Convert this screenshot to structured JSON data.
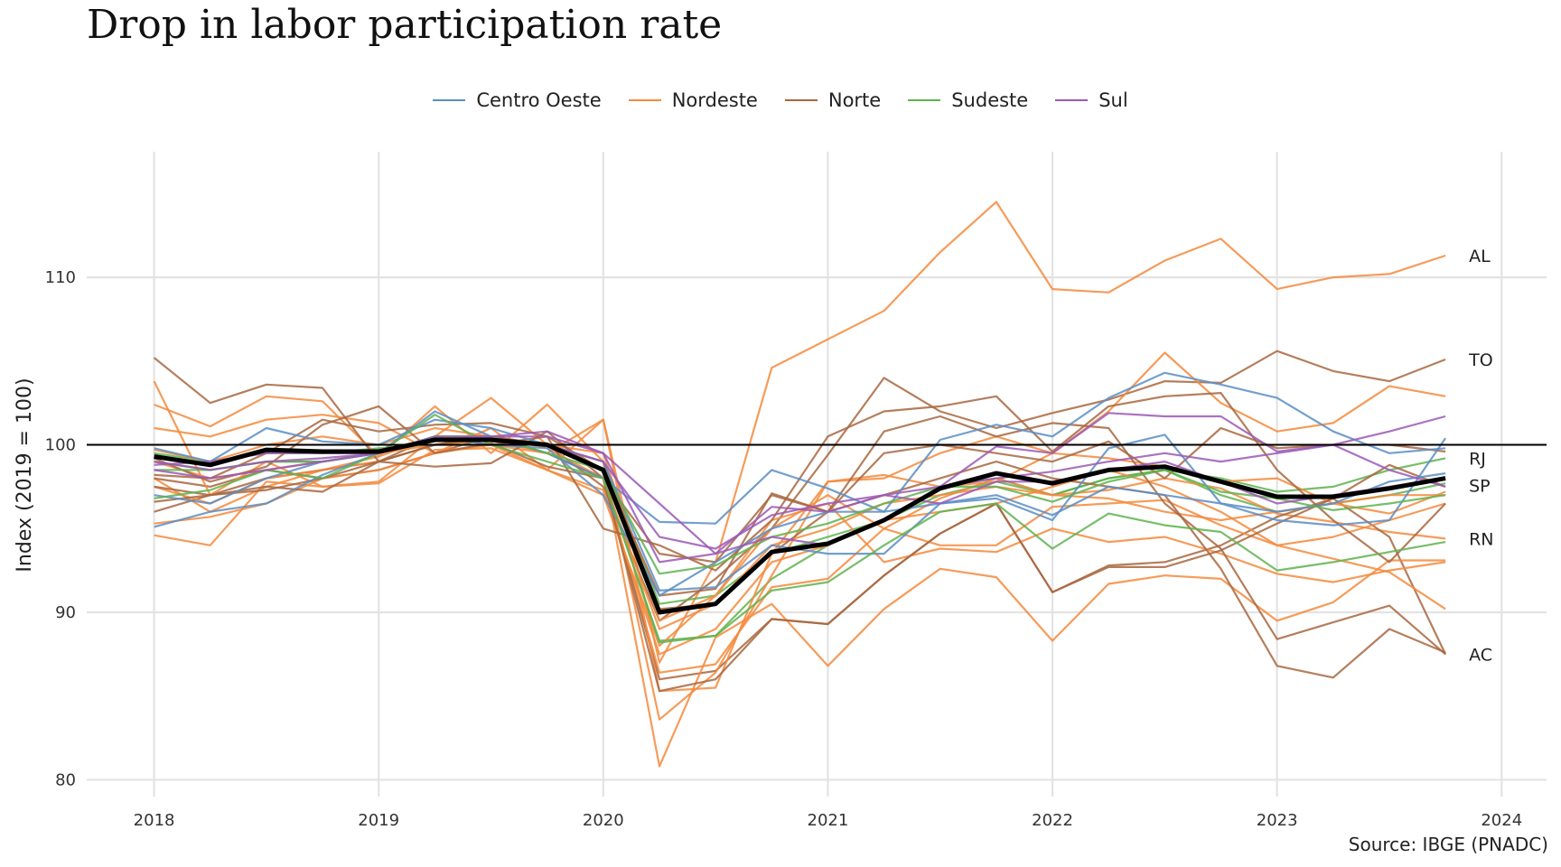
{
  "chart_data": {
    "type": "line",
    "title": "Drop in labor participation rate",
    "ylabel": "Index (2019 = 100)",
    "xlabel": "",
    "caption": "Source: IBGE (PNADC)",
    "x_ticks": [
      2018,
      2019,
      2020,
      2021,
      2022,
      2023,
      2024
    ],
    "y_ticks": [
      80,
      90,
      100,
      110
    ],
    "xlim": [
      2017.7,
      2024.2
    ],
    "ylim": [
      79,
      117.5
    ],
    "grid": true,
    "legend_position": "top-center",
    "reference_line": 100,
    "colors": {
      "Centro Oeste": "#5b8ec4",
      "Nordeste": "#f58a3c",
      "Norte": "#a8673f",
      "Sudeste": "#5fb34f",
      "Sul": "#9b59b6",
      "national": "#000000"
    },
    "legend": [
      {
        "label": "Centro Oeste",
        "color": "#5b8ec4"
      },
      {
        "label": "Nordeste",
        "color": "#f58a3c"
      },
      {
        "label": "Norte",
        "color": "#a8673f"
      },
      {
        "label": "Sudeste",
        "color": "#5fb34f"
      },
      {
        "label": "Sul",
        "color": "#9b59b6"
      }
    ],
    "x": [
      2018.0,
      2018.25,
      2018.5,
      2018.75,
      2019.0,
      2019.25,
      2019.5,
      2019.75,
      2020.0,
      2020.25,
      2020.5,
      2020.75,
      2021.0,
      2021.25,
      2021.5,
      2021.75,
      2022.0,
      2022.25,
      2022.5,
      2022.75,
      2023.0,
      2023.25,
      2023.5,
      2023.75
    ],
    "national": [
      99.3,
      98.8,
      99.7,
      99.6,
      99.6,
      100.3,
      100.3,
      100.0,
      98.5,
      90.0,
      90.5,
      93.6,
      94.1,
      95.5,
      97.4,
      98.3,
      97.7,
      98.5,
      98.7,
      97.8,
      96.9,
      96.9,
      97.4,
      98.0
    ],
    "series": [
      {
        "name": "AL",
        "group": "Nordeste",
        "label": "AL",
        "values": [
          98.0,
          96.0,
          97.5,
          98.5,
          99.3,
          100.5,
          100.0,
          99.5,
          101.5,
          87.0,
          93.0,
          104.6,
          106.3,
          108.0,
          111.5,
          114.5,
          109.3,
          109.1,
          111.0,
          112.3,
          109.3,
          110.0,
          110.2,
          111.3
        ]
      },
      {
        "name": "TO",
        "group": "Norte",
        "label": "TO",
        "values": [
          96.0,
          97.0,
          98.0,
          98.5,
          99.0,
          100.5,
          100.5,
          100.0,
          97.5,
          89.5,
          92.0,
          95.0,
          99.4,
          104.0,
          102.0,
          101.0,
          101.9,
          102.7,
          103.8,
          103.7,
          105.6,
          104.4,
          103.8,
          105.1
        ]
      },
      {
        "name": "RJ",
        "group": "Sudeste",
        "label": "RJ",
        "values": [
          99.0,
          98.5,
          99.0,
          99.0,
          99.5,
          100.5,
          100.5,
          99.5,
          98.0,
          88.3,
          88.6,
          92.0,
          94.0,
          95.5,
          97.5,
          98.0,
          97.0,
          98.0,
          98.5,
          98.0,
          97.2,
          97.5,
          98.5,
          99.2
        ]
      },
      {
        "name": "SP",
        "group": "Sudeste",
        "label": "SP",
        "values": [
          99.5,
          99.0,
          99.5,
          99.5,
          99.8,
          100.0,
          100.3,
          100.0,
          99.0,
          90.5,
          91.0,
          93.5,
          94.5,
          95.5,
          97.0,
          97.8,
          97.0,
          98.0,
          98.5,
          97.0,
          96.0,
          96.5,
          97.0,
          97.7
        ]
      },
      {
        "name": "RN",
        "group": "Nordeste",
        "label": "RN",
        "values": [
          97.5,
          96.5,
          98.0,
          98.5,
          99.0,
          100.0,
          100.3,
          99.5,
          98.0,
          86.4,
          86.9,
          91.5,
          92.0,
          95.0,
          96.8,
          98.0,
          97.0,
          97.3,
          98.0,
          97.4,
          95.9,
          95.4,
          94.8,
          94.4
        ]
      },
      {
        "name": "AC",
        "group": "Norte",
        "label": "AC",
        "values": [
          98.0,
          97.5,
          98.5,
          98.0,
          98.5,
          99.5,
          100.5,
          99.5,
          98.0,
          86.0,
          86.5,
          89.6,
          89.3,
          92.2,
          94.7,
          96.5,
          91.2,
          92.8,
          93.0,
          94.0,
          95.7,
          96.8,
          94.5,
          87.5
        ]
      },
      {
        "name": "Nordeste 1",
        "group": "Nordeste",
        "values": [
          103.8,
          97.0,
          99.0,
          97.5,
          97.8,
          100.5,
          102.8,
          100.0,
          98.5,
          80.8,
          88.5,
          90.5,
          86.8,
          90.2,
          92.6,
          92.1,
          88.3,
          91.7,
          92.2,
          92.0,
          89.5,
          90.6,
          93.1,
          93.1
        ]
      },
      {
        "name": "Nordeste 2",
        "group": "Nordeste",
        "values": [
          102.4,
          101.1,
          102.9,
          102.6,
          99.3,
          102.3,
          99.5,
          102.4,
          99.0,
          83.6,
          86.4,
          92.2,
          97.8,
          98.2,
          97.5,
          97.8,
          99.5,
          102.0,
          105.5,
          102.5,
          100.8,
          101.3,
          103.5,
          102.9
        ]
      },
      {
        "name": "Nordeste 3",
        "group": "Nordeste",
        "values": [
          94.6,
          94.0,
          97.8,
          97.5,
          97.7,
          99.7,
          99.8,
          98.5,
          101.5,
          85.3,
          85.5,
          93.5,
          97.8,
          98.0,
          99.5,
          100.5,
          99.5,
          99.2,
          98.7,
          97.8,
          98.0,
          96.5,
          95.9,
          97.2
        ]
      },
      {
        "name": "Nordeste 4",
        "group": "Nordeste",
        "values": [
          101.0,
          100.5,
          101.5,
          101.8,
          101.3,
          99.5,
          101.0,
          98.5,
          97.3,
          87.5,
          89.0,
          93.0,
          94.0,
          95.5,
          96.0,
          96.5,
          97.5,
          98.5,
          97.5,
          96.0,
          94.0,
          94.5,
          95.5,
          96.5
        ]
      },
      {
        "name": "Nordeste 5",
        "group": "Nordeste",
        "values": [
          95.3,
          95.7,
          96.5,
          98.0,
          98.5,
          99.5,
          100.0,
          98.5,
          97.0,
          88.0,
          91.0,
          95.0,
          97.0,
          95.0,
          94.0,
          94.0,
          96.3,
          96.5,
          96.7,
          95.2,
          94.0,
          93.2,
          92.4,
          90.2
        ]
      },
      {
        "name": "Nordeste 6",
        "group": "Nordeste",
        "values": [
          99.7,
          99.0,
          100.0,
          100.5,
          100.0,
          101.0,
          100.5,
          99.8,
          98.0,
          89.0,
          90.5,
          94.0,
          95.0,
          96.5,
          97.0,
          97.5,
          97.0,
          96.8,
          96.0,
          95.5,
          96.0,
          96.5,
          97.0,
          97.0
        ]
      },
      {
        "name": "Nordeste 7",
        "group": "Nordeste",
        "values": [
          99.0,
          98.0,
          98.5,
          99.0,
          99.5,
          100.0,
          100.5,
          100.0,
          99.5,
          89.5,
          91.0,
          95.5,
          96.5,
          93.0,
          93.8,
          93.6,
          95.0,
          94.2,
          94.5,
          93.5,
          92.3,
          91.8,
          92.5,
          93.0
        ]
      },
      {
        "name": "Norte 1",
        "group": "Norte",
        "values": [
          105.2,
          102.5,
          103.6,
          103.4,
          99.0,
          98.7,
          98.9,
          100.8,
          98.0,
          85.3,
          86.0,
          89.6,
          89.3,
          92.2,
          94.7,
          96.5,
          91.2,
          92.7,
          92.7,
          93.7,
          95.3,
          96.8,
          98.8,
          97.5
        ]
      },
      {
        "name": "Norte 2",
        "group": "Norte",
        "values": [
          97.5,
          97.0,
          97.5,
          97.2,
          99.0,
          100.0,
          100.0,
          100.5,
          95.0,
          94.0,
          92.5,
          95.5,
          100.5,
          102.0,
          102.3,
          102.9,
          99.6,
          102.3,
          102.9,
          103.1,
          98.5,
          95.5,
          93.0,
          96.5
        ]
      },
      {
        "name": "Norte 3",
        "group": "Norte",
        "values": [
          99.2,
          97.8,
          98.7,
          101.2,
          102.3,
          99.5,
          100.1,
          98.7,
          98.0,
          93.5,
          93.0,
          97.0,
          96.0,
          99.5,
          100.0,
          99.5,
          99.0,
          100.2,
          98.0,
          101.0,
          99.8,
          100.0,
          100.0,
          99.6
        ]
      },
      {
        "name": "Norte 4",
        "group": "Norte",
        "values": [
          98.2,
          98.0,
          99.5,
          101.5,
          100.8,
          101.2,
          101.3,
          100.5,
          98.5,
          91.0,
          91.4,
          97.1,
          96.0,
          100.8,
          101.7,
          100.5,
          101.3,
          101.0,
          96.5,
          93.8,
          88.4,
          89.4,
          90.4,
          87.5
        ]
      },
      {
        "name": "Norte 5",
        "group": "Norte",
        "values": [
          96.6,
          97.0,
          97.3,
          98.0,
          99.0,
          100.0,
          100.5,
          100.0,
          99.0,
          90.2,
          90.5,
          93.5,
          96.0,
          97.0,
          98.0,
          99.0,
          98.0,
          97.5,
          97.0,
          92.6,
          86.8,
          86.1,
          89.0,
          87.6
        ]
      },
      {
        "name": "Centro Oeste 1",
        "group": "Centro Oeste",
        "values": [
          95.1,
          96.0,
          96.5,
          98.2,
          99.5,
          102.0,
          100.5,
          99.5,
          98.0,
          95.4,
          95.3,
          98.5,
          97.4,
          96.0,
          100.3,
          101.2,
          100.5,
          102.8,
          104.3,
          103.6,
          102.8,
          100.8,
          99.5,
          99.8
        ]
      },
      {
        "name": "Centro Oeste 2",
        "group": "Centro Oeste",
        "values": [
          99.8,
          99.0,
          101.0,
          100.2,
          100.0,
          101.5,
          101.0,
          100.0,
          99.0,
          91.3,
          91.5,
          94.0,
          93.5,
          93.5,
          96.5,
          96.8,
          95.5,
          99.8,
          100.6,
          96.5,
          95.5,
          95.2,
          95.5,
          100.4
        ]
      },
      {
        "name": "Centro Oeste 3",
        "group": "Centro Oeste",
        "values": [
          97.0,
          96.5,
          98.0,
          99.0,
          99.5,
          100.5,
          100.0,
          99.8,
          97.0,
          91.0,
          93.0,
          95.0,
          96.0,
          96.0,
          96.5,
          97.0,
          95.8,
          97.5,
          97.0,
          96.5,
          96.0,
          96.5,
          97.8,
          98.3
        ]
      },
      {
        "name": "Sudeste 1",
        "group": "Sudeste",
        "values": [
          96.8,
          97.3,
          98.5,
          98.0,
          99.5,
          101.8,
          100.0,
          99.0,
          98.0,
          88.2,
          88.6,
          91.3,
          91.8,
          94.0,
          96.0,
          96.5,
          93.8,
          95.9,
          95.2,
          94.8,
          92.5,
          93.0,
          93.6,
          94.2
        ]
      },
      {
        "name": "Sudeste 2",
        "group": "Sudeste",
        "values": [
          98.5,
          98.5,
          99.0,
          99.0,
          99.5,
          100.5,
          100.5,
          99.5,
          98.5,
          92.3,
          92.8,
          94.5,
          95.3,
          96.5,
          97.5,
          97.5,
          96.6,
          97.8,
          98.5,
          97.2,
          96.8,
          96.1,
          96.5,
          97.0
        ]
      },
      {
        "name": "Sul 1",
        "group": "Sul",
        "values": [
          98.5,
          98.0,
          98.5,
          99.0,
          99.5,
          100.5,
          100.5,
          100.8,
          99.5,
          96.5,
          93.5,
          96.3,
          96.0,
          97.0,
          97.5,
          99.9,
          99.5,
          101.9,
          101.7,
          101.7,
          99.6,
          100.0,
          100.8,
          101.7
        ]
      },
      {
        "name": "Sul 2",
        "group": "Sul",
        "values": [
          98.8,
          99.0,
          99.5,
          99.5,
          99.5,
          100.3,
          100.5,
          100.5,
          99.5,
          93.0,
          93.5,
          94.5,
          94.0,
          95.5,
          97.5,
          98.0,
          98.4,
          99.0,
          99.5,
          99.0,
          99.5,
          100.0,
          98.5,
          97.5
        ]
      },
      {
        "name": "Sul 3",
        "group": "Sul",
        "values": [
          99.0,
          98.5,
          99.0,
          99.2,
          99.5,
          100.3,
          100.3,
          100.0,
          99.0,
          94.5,
          93.8,
          95.8,
          96.5,
          97.0,
          96.5,
          97.8,
          97.8,
          98.5,
          99.0,
          97.8,
          96.5,
          97.0,
          97.5,
          98.0
        ]
      }
    ]
  }
}
